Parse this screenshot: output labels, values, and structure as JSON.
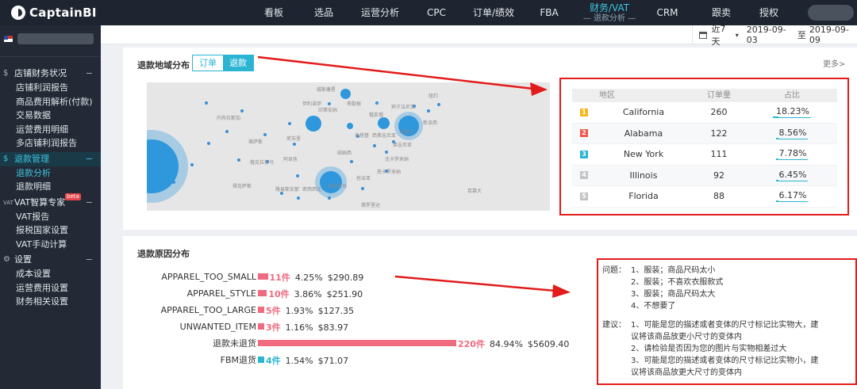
{
  "app": {
    "logo_text": "CaptainBI"
  },
  "nav": {
    "items": [
      {
        "label": "看板"
      },
      {
        "label": "选品"
      },
      {
        "label": "运营分析"
      },
      {
        "label": "CPC"
      },
      {
        "label": "订单/绩效"
      },
      {
        "label": "FBA"
      },
      {
        "label": "财务/VAT",
        "sub": "— 退款分析 —"
      },
      {
        "label": "CRM"
      },
      {
        "label": "跟卖"
      },
      {
        "label": "授权"
      }
    ]
  },
  "sidebar": {
    "groups": [
      {
        "label": "店铺财务状况",
        "toggle": "−",
        "icon": "$",
        "items": [
          "店铺利润报告",
          "商品费用解析(付款)",
          "交易数据",
          "运营费用明细",
          "多店铺利润报告"
        ]
      },
      {
        "label": "退款管理",
        "toggle": "−",
        "icon": "$",
        "items": [
          "退款分析",
          "退款明细"
        ]
      },
      {
        "label": "VAT智算专家",
        "toggle": "−",
        "icon": "VAT",
        "badge": "beta",
        "items": [
          "VAT报告",
          "报税国家设置",
          "VAT手动计算"
        ]
      },
      {
        "label": "设置",
        "toggle": "−",
        "icon": "⚙",
        "items": [
          "成本设置",
          "运营费用设置",
          "财务相关设置"
        ]
      }
    ]
  },
  "datebar": {
    "preset": "近7天",
    "caret": "▾",
    "start": "2019-09-03",
    "sep": "至",
    "end": "2019-09-09"
  },
  "region": {
    "title": "退款地域分布",
    "tabs": [
      "订单",
      "退款"
    ],
    "more": "更多>",
    "map_labels": [
      "印第安纳",
      "俄亥俄",
      "宾夕法尼亚",
      "纽约",
      "新泽西",
      "马里兰",
      "弗吉尼亚",
      "北卡罗来纳",
      "田纳西",
      "肯塔基",
      "伊利诺伊",
      "威斯康星",
      "密歇根",
      "密苏里",
      "阿肯色",
      "亚拉巴马",
      "佐治亚",
      "南卡罗来纳",
      "密西西比",
      "路易斯安那",
      "堪萨斯",
      "俄克拉荷马",
      "得克萨斯",
      "佛罗里达",
      "西弗吉尼亚",
      "百慕大",
      "内布拉斯加"
    ],
    "table": {
      "headers": [
        "地区",
        "订单量",
        "占比"
      ],
      "rows": [
        {
          "rank": "1",
          "region": "California",
          "orders": "260",
          "pct": "18.23%",
          "share": 0.1823,
          "color": "#f3b71b"
        },
        {
          "rank": "2",
          "region": "Alabama",
          "orders": "122",
          "pct": "8.56%",
          "share": 0.0856,
          "color": "#f0584f"
        },
        {
          "rank": "3",
          "region": "New York",
          "orders": "111",
          "pct": "7.78%",
          "share": 0.0778,
          "color": "#2bb5d3"
        },
        {
          "rank": "4",
          "region": "Illinois",
          "orders": "92",
          "pct": "6.45%",
          "share": 0.0645,
          "color": "#c4c4c4"
        },
        {
          "rank": "5",
          "region": "Florida",
          "orders": "88",
          "pct": "6.17%",
          "share": 0.0617,
          "color": "#c4c4c4"
        }
      ]
    }
  },
  "reasons": {
    "title": "退款原因分布",
    "rows": [
      {
        "label": "APPAREL_TOO_SMALL",
        "count": "11件",
        "pct": "4.25%",
        "amount": "$290.89",
        "share": 0.0425,
        "color": "#f06b80"
      },
      {
        "label": "APPAREL_STYLE",
        "count": "10件",
        "pct": "3.86%",
        "amount": "$251.90",
        "share": 0.0386,
        "color": "#f06b80"
      },
      {
        "label": "APPAREL_TOO_LARGE",
        "count": "5件",
        "pct": "1.93%",
        "amount": "$127.35",
        "share": 0.0193,
        "color": "#f06b80"
      },
      {
        "label": "UNWANTED_ITEM",
        "count": "3件",
        "pct": "1.16%",
        "amount": "$83.97",
        "share": 0.0116,
        "color": "#f06b80"
      },
      {
        "label": "退款未退货",
        "count": "220件",
        "pct": "84.94%",
        "amount": "$5609.40",
        "share": 0.8494,
        "color": "#f06b80"
      },
      {
        "label": "FBM退货",
        "count": "4件",
        "pct": "1.54%",
        "amount": "$71.07",
        "share": 0.0154,
        "color": "#2bb5d3"
      }
    ]
  },
  "notes": {
    "problem_label": "问题：",
    "problems": [
      "1、服装；商品尺码太小",
      "2、服装；不喜欢衣服款式",
      "3、服装；商品尺码太大",
      "4、不想要了"
    ],
    "advice_label": "建议：",
    "advice": [
      "1、可能是您的描述或者变体的尺寸标记比实物大，建议将该商品放更小尺寸的变体内",
      "2、请检验是否因为您的图片与实物相差过大",
      "3、可能是您的描述或者变体的尺寸标记比实物小，建议将该商品放更大尺寸的变体内"
    ]
  },
  "colors": {
    "accent": "#2bb5d3",
    "annotation": "#e21b1b",
    "bar": "#f06b80"
  }
}
